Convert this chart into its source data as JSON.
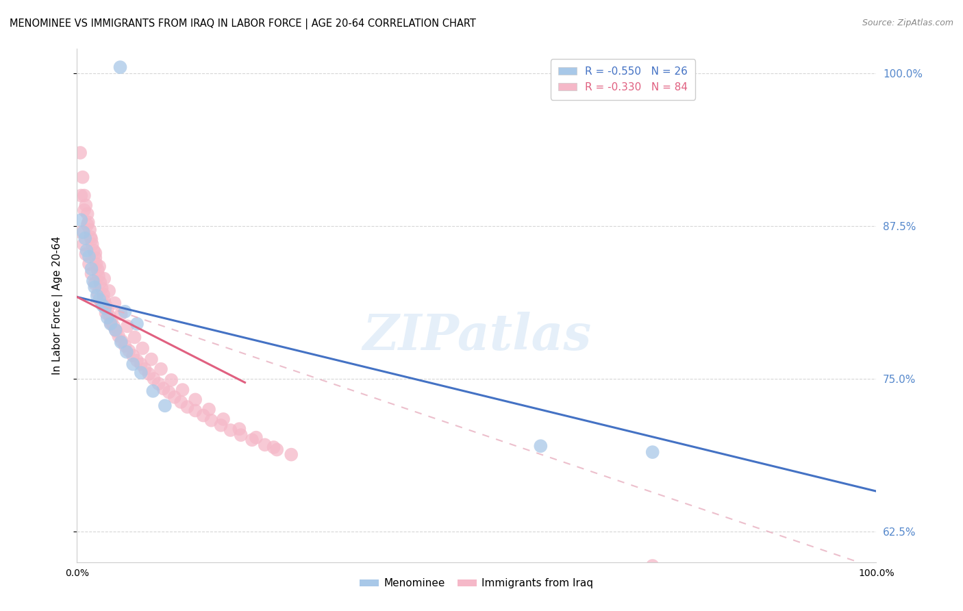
{
  "title": "MENOMINEE VS IMMIGRANTS FROM IRAQ IN LABOR FORCE | AGE 20-64 CORRELATION CHART",
  "source": "Source: ZipAtlas.com",
  "ylabel": "In Labor Force | Age 20-64",
  "xlim": [
    0.0,
    1.0
  ],
  "ylim": [
    0.6,
    1.02
  ],
  "yticks": [
    0.625,
    0.75,
    0.875,
    1.0
  ],
  "ytick_labels": [
    "62.5%",
    "75.0%",
    "87.5%",
    "100.0%"
  ],
  "xticks": [
    0.0,
    0.2,
    0.4,
    0.6,
    0.8,
    1.0
  ],
  "xtick_labels": [
    "0.0%",
    "",
    "",
    "",
    "",
    "100.0%"
  ],
  "legend_r_labels": [
    "R = -0.550   N = 26",
    "R = -0.330   N = 84"
  ],
  "blue_scatter_color": "#a8c8e8",
  "pink_scatter_color": "#f5b8c8",
  "blue_line_color": "#4472c4",
  "pink_line_color": "#e06080",
  "pink_dash_color": "#e8b0c0",
  "watermark": "ZIPatlas",
  "blue_trend": [
    0.0,
    1.0,
    0.817,
    0.658
  ],
  "pink_solid_trend": [
    0.0,
    0.21,
    0.817,
    0.747
  ],
  "pink_dash_trend": [
    0.0,
    1.0,
    0.817,
    0.595
  ],
  "menominee_x": [
    0.054,
    0.005,
    0.008,
    0.01,
    0.012,
    0.015,
    0.018,
    0.02,
    0.022,
    0.025,
    0.028,
    0.032,
    0.035,
    0.038,
    0.042,
    0.048,
    0.055,
    0.062,
    0.07,
    0.08,
    0.095,
    0.11,
    0.06,
    0.075,
    0.58,
    0.72
  ],
  "menominee_y": [
    1.005,
    0.88,
    0.87,
    0.865,
    0.855,
    0.85,
    0.84,
    0.83,
    0.825,
    0.818,
    0.815,
    0.81,
    0.808,
    0.8,
    0.795,
    0.79,
    0.78,
    0.772,
    0.762,
    0.755,
    0.74,
    0.728,
    0.805,
    0.795,
    0.695,
    0.69
  ],
  "iraq_x": [
    0.004,
    0.007,
    0.009,
    0.011,
    0.013,
    0.014,
    0.016,
    0.017,
    0.019,
    0.021,
    0.023,
    0.024,
    0.026,
    0.027,
    0.029,
    0.031,
    0.033,
    0.034,
    0.036,
    0.038,
    0.041,
    0.043,
    0.046,
    0.049,
    0.052,
    0.056,
    0.06,
    0.065,
    0.07,
    0.075,
    0.08,
    0.085,
    0.09,
    0.096,
    0.102,
    0.108,
    0.115,
    0.122,
    0.13,
    0.138,
    0.148,
    0.158,
    0.168,
    0.18,
    0.192,
    0.205,
    0.219,
    0.235,
    0.25,
    0.268,
    0.005,
    0.008,
    0.011,
    0.015,
    0.018,
    0.022,
    0.026,
    0.031,
    0.036,
    0.042,
    0.005,
    0.009,
    0.013,
    0.018,
    0.023,
    0.028,
    0.034,
    0.04,
    0.047,
    0.055,
    0.063,
    0.072,
    0.082,
    0.093,
    0.105,
    0.118,
    0.132,
    0.148,
    0.165,
    0.183,
    0.203,
    0.224,
    0.246,
    0.72
  ],
  "iraq_y": [
    0.935,
    0.915,
    0.9,
    0.892,
    0.885,
    0.878,
    0.872,
    0.866,
    0.86,
    0.855,
    0.849,
    0.844,
    0.839,
    0.834,
    0.829,
    0.824,
    0.819,
    0.814,
    0.81,
    0.806,
    0.801,
    0.797,
    0.793,
    0.789,
    0.785,
    0.781,
    0.777,
    0.773,
    0.769,
    0.765,
    0.762,
    0.758,
    0.754,
    0.75,
    0.746,
    0.742,
    0.739,
    0.735,
    0.731,
    0.727,
    0.724,
    0.72,
    0.716,
    0.712,
    0.708,
    0.704,
    0.7,
    0.696,
    0.692,
    0.688,
    0.87,
    0.86,
    0.852,
    0.844,
    0.836,
    0.828,
    0.82,
    0.812,
    0.804,
    0.796,
    0.9,
    0.888,
    0.876,
    0.864,
    0.853,
    0.842,
    0.832,
    0.822,
    0.812,
    0.803,
    0.793,
    0.784,
    0.775,
    0.766,
    0.758,
    0.749,
    0.741,
    0.733,
    0.725,
    0.717,
    0.709,
    0.702,
    0.694,
    0.597
  ]
}
